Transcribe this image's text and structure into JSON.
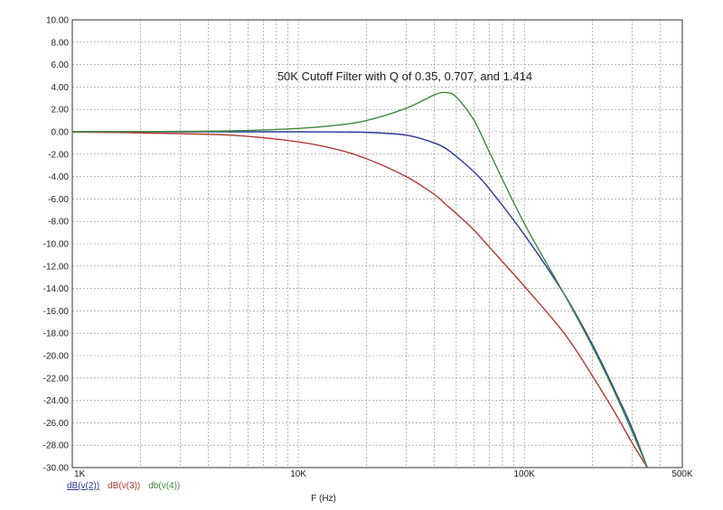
{
  "chart_data": {
    "type": "line",
    "title": "50K Cutoff Filter with Q of 0.35, 0.707, and 1.414",
    "xlabel": "F (Hz)",
    "ylabel": "",
    "xscale": "log",
    "xlim": [
      1000,
      500000
    ],
    "ylim": [
      -30,
      10
    ],
    "grid": true,
    "legend": "bottom-left",
    "x_ticks": [
      {
        "value": 1000,
        "label": "1K"
      },
      {
        "value": 10000,
        "label": "10K"
      },
      {
        "value": 100000,
        "label": "100K"
      },
      {
        "value": 500000,
        "label": "500K"
      }
    ],
    "y_ticks": [
      "10.00",
      "8.00",
      "6.00",
      "4.00",
      "2.00",
      "0.00",
      "-2.00",
      "-4.00",
      "-6.00",
      "-8.00",
      "-10.00",
      "-12.00",
      "-14.00",
      "-16.00",
      "-18.00",
      "-20.00",
      "-22.00",
      "-24.00",
      "-26.00",
      "-28.00",
      "-30.00"
    ],
    "x": [
      1000,
      2000,
      5000,
      10000,
      15000,
      20000,
      30000,
      40000,
      45000,
      50000,
      60000,
      70000,
      100000,
      150000,
      200000,
      250000,
      300000,
      350000
    ],
    "series": [
      {
        "name": "dB(v(2))",
        "color": "#2b3a9c",
        "values": [
          0.0,
          0.0,
          0.0,
          0.0,
          -0.02,
          -0.05,
          -0.3,
          -1.0,
          -1.5,
          -2.2,
          -3.6,
          -5.1,
          -9.2,
          -14.5,
          -19.0,
          -23.0,
          -26.5,
          -30.0
        ]
      },
      {
        "name": "dB(v(3))",
        "color": "#b03a30",
        "values": [
          -0.02,
          -0.1,
          -0.3,
          -0.9,
          -1.6,
          -2.4,
          -4.0,
          -5.6,
          -6.5,
          -7.3,
          -8.8,
          -10.3,
          -13.8,
          -18.0,
          -21.8,
          -25.0,
          -27.8,
          -30.0
        ]
      },
      {
        "name": "db(v(4))",
        "color": "#3c8a3c",
        "values": [
          0.0,
          0.02,
          0.08,
          0.3,
          0.6,
          1.0,
          2.1,
          3.3,
          3.5,
          3.1,
          1.0,
          -1.8,
          -8.2,
          -14.5,
          -19.2,
          -23.2,
          -26.8,
          -30.0
        ]
      }
    ]
  }
}
